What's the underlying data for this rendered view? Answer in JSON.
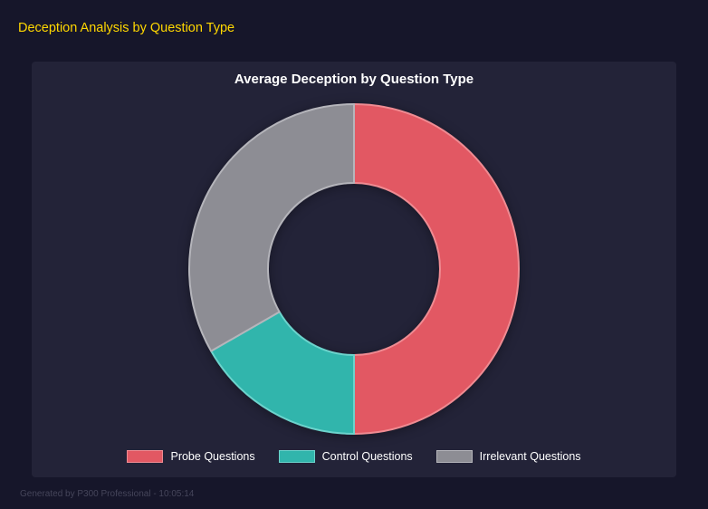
{
  "page": {
    "title": "Deception Analysis by Question Type",
    "footer": "Generated by P300 Professional - 10:05:14"
  },
  "chart_data": {
    "type": "pie",
    "donut": true,
    "title": "Average Deception by Question Type",
    "labels": [
      "Probe Questions",
      "Control Questions",
      "Irrelevant Questions"
    ],
    "values_percent": [
      50,
      16.7,
      33.3
    ],
    "colors": [
      "#e25863",
      "#31b5ac",
      "#8d8d94"
    ],
    "border_colors": [
      "#ef8b92",
      "#6cd3cc",
      "#b5b5bb"
    ],
    "legend_position": "bottom",
    "background_color": "#232338",
    "page_background_color": "#16162a",
    "title_color": "#ffd700"
  }
}
